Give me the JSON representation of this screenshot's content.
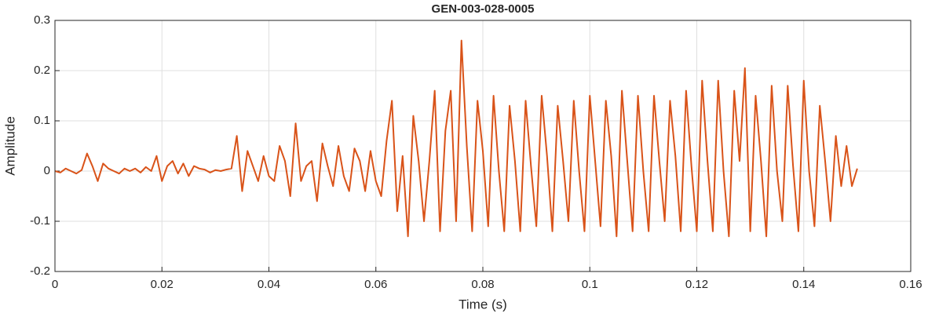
{
  "chart_data": {
    "type": "line",
    "title": "GEN-003-028-0005",
    "x_label": "Time (s)",
    "y_label": "Amplitude",
    "color": "#d95319",
    "grid": true,
    "xlim": [
      0,
      0.16
    ],
    "xticks": [
      0,
      0.02,
      0.04,
      0.06,
      0.08,
      0.1,
      0.12,
      0.14,
      0.16
    ],
    "ylim": [
      -0.2,
      0.3
    ],
    "yticks": [
      -0.2,
      -0.1,
      0,
      0.1,
      0.2,
      0.3
    ],
    "x": [
      0,
      0.001,
      0.002,
      0.003,
      0.004,
      0.005,
      0.006,
      0.007,
      0.008,
      0.009,
      0.01,
      0.011,
      0.012,
      0.013,
      0.014,
      0.015,
      0.016,
      0.017,
      0.018,
      0.019,
      0.02,
      0.021,
      0.022,
      0.023,
      0.024,
      0.025,
      0.026,
      0.027,
      0.028,
      0.029,
      0.03,
      0.031,
      0.032,
      0.033,
      0.034,
      0.035,
      0.036,
      0.037,
      0.038,
      0.039,
      0.04,
      0.041,
      0.042,
      0.043,
      0.044,
      0.045,
      0.046,
      0.047,
      0.048,
      0.049,
      0.05,
      0.051,
      0.052,
      0.053,
      0.054,
      0.055,
      0.056,
      0.057,
      0.058,
      0.059,
      0.06,
      0.061,
      0.062,
      0.063,
      0.064,
      0.065,
      0.066,
      0.067,
      0.068,
      0.069,
      0.07,
      0.071,
      0.072,
      0.073,
      0.074,
      0.075,
      0.076,
      0.077,
      0.078,
      0.079,
      0.08,
      0.081,
      0.082,
      0.083,
      0.084,
      0.085,
      0.086,
      0.087,
      0.088,
      0.089,
      0.09,
      0.091,
      0.092,
      0.093,
      0.094,
      0.095,
      0.096,
      0.097,
      0.098,
      0.099,
      0.1,
      0.101,
      0.102,
      0.103,
      0.104,
      0.105,
      0.106,
      0.107,
      0.108,
      0.109,
      0.11,
      0.111,
      0.112,
      0.113,
      0.114,
      0.115,
      0.116,
      0.117,
      0.118,
      0.119,
      0.12,
      0.121,
      0.122,
      0.123,
      0.124,
      0.125,
      0.126,
      0.127,
      0.128,
      0.129,
      0.13,
      0.131,
      0.132,
      0.133,
      0.134,
      0.135,
      0.136,
      0.137,
      0.138,
      0.139,
      0.14,
      0.141,
      0.142,
      0.143,
      0.144,
      0.145,
      0.146,
      0.147,
      0.148,
      0.149,
      0.15
    ],
    "values": [
      0,
      -0.003,
      0.005,
      0,
      -0.005,
      0.002,
      0.035,
      0.01,
      -0.02,
      0.015,
      0.005,
      0,
      -0.005,
      0.005,
      0,
      0.005,
      -0.003,
      0.008,
      0,
      0.03,
      -0.02,
      0.01,
      0.02,
      -0.005,
      0.015,
      -0.01,
      0.01,
      0.005,
      0.003,
      -0.003,
      0.002,
      0,
      0.003,
      0.005,
      0.07,
      -0.04,
      0.04,
      0.01,
      -0.02,
      0.03,
      -0.01,
      -0.02,
      0.05,
      0.02,
      -0.05,
      0.095,
      -0.02,
      0.01,
      0.02,
      -0.06,
      0.055,
      0.01,
      -0.03,
      0.05,
      -0.01,
      -0.04,
      0.045,
      0.02,
      -0.04,
      0.04,
      -0.02,
      -0.05,
      0.06,
      0.14,
      -0.08,
      0.03,
      -0.13,
      0.11,
      0.02,
      -0.1,
      0.02,
      0.16,
      -0.12,
      0.08,
      0.16,
      -0.1,
      0.26,
      0.05,
      -0.12,
      0.14,
      0.04,
      -0.11,
      0.15,
      0,
      -0.12,
      0.13,
      0.02,
      -0.12,
      0.14,
      0.01,
      -0.11,
      0.15,
      0.03,
      -0.12,
      0.13,
      0.02,
      -0.1,
      0.14,
      0,
      -0.12,
      0.15,
      0.02,
      -0.11,
      0.14,
      0.03,
      -0.13,
      0.16,
      0.02,
      -0.12,
      0.15,
      0,
      -0.12,
      0.15,
      0.02,
      -0.1,
      0.14,
      0.03,
      -0.12,
      0.16,
      0.01,
      -0.12,
      0.18,
      0.02,
      -0.12,
      0.18,
      0,
      -0.13,
      0.16,
      0.02,
      0.205,
      -0.12,
      0.15,
      0.02,
      -0.13,
      0.17,
      0,
      -0.1,
      0.17,
      0.01,
      -0.12,
      0.18,
      0,
      -0.11,
      0.13,
      0.02,
      -0.1,
      0.07,
      -0.03,
      0.05,
      -0.03,
      0.005
    ]
  }
}
